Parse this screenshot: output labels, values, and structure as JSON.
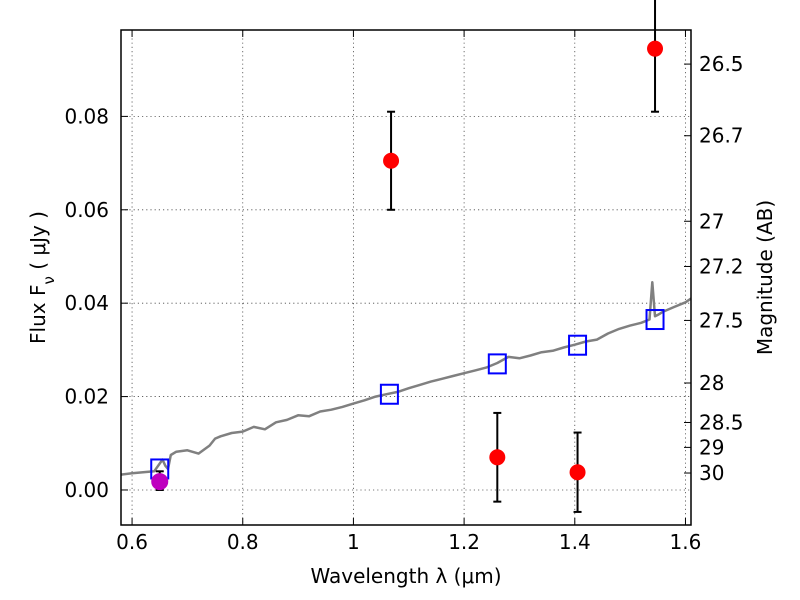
{
  "chart_data": {
    "type": "scatter",
    "xlabel": "Wavelength  λ (μm)",
    "ylabel": "Flux  F_ν  ( μJy )",
    "ylabel_right": "Magnitude (AB)",
    "xlim": [
      0.58,
      1.61
    ],
    "ylim": [
      -0.0075,
      0.0985
    ],
    "x_ticks": [
      0.6,
      0.8,
      1.0,
      1.2,
      1.4,
      1.6
    ],
    "x_tick_labels": [
      "0.6",
      "0.8",
      "1",
      "1.2",
      "1.4",
      "1.6"
    ],
    "y_ticks": [
      0.0,
      0.02,
      0.04,
      0.06,
      0.08
    ],
    "y_tick_labels": [
      "0.00",
      "0.02",
      "0.04",
      "0.06",
      "0.08"
    ],
    "mag_ticks": [
      26.5,
      26.7,
      27,
      27.2,
      27.5,
      28,
      28.5,
      29,
      30
    ],
    "mag_tick_labels": [
      "26.5",
      "26.7",
      "27",
      "27.2",
      "27.5",
      "28",
      "28.5",
      "29",
      "30"
    ],
    "grid": true,
    "colors": {
      "observed": "#ff0000",
      "reference_point": "#bf00bf",
      "model_band": "#0000ff",
      "model_spectrum": "#808080"
    },
    "series": [
      {
        "kind": "model_spectrum",
        "x": [
          0.58,
          0.6,
          0.62,
          0.64,
          0.655,
          0.66,
          0.665,
          0.67,
          0.68,
          0.7,
          0.72,
          0.74,
          0.75,
          0.76,
          0.78,
          0.8,
          0.82,
          0.84,
          0.86,
          0.88,
          0.9,
          0.92,
          0.94,
          0.96,
          0.98,
          1.0,
          1.02,
          1.04,
          1.06,
          1.08,
          1.1,
          1.12,
          1.14,
          1.16,
          1.18,
          1.2,
          1.22,
          1.24,
          1.26,
          1.28,
          1.3,
          1.32,
          1.34,
          1.36,
          1.38,
          1.4,
          1.42,
          1.44,
          1.46,
          1.48,
          1.5,
          1.52,
          1.535,
          1.54,
          1.545,
          1.55,
          1.56,
          1.58,
          1.6,
          1.61
        ],
        "y": [
          0.0033,
          0.0036,
          0.0038,
          0.004,
          0.0065,
          0.0052,
          0.0045,
          0.0075,
          0.0082,
          0.0085,
          0.0078,
          0.0095,
          0.011,
          0.0115,
          0.0122,
          0.0125,
          0.0135,
          0.013,
          0.0145,
          0.015,
          0.016,
          0.0158,
          0.0168,
          0.0172,
          0.0178,
          0.0185,
          0.0192,
          0.02,
          0.0205,
          0.021,
          0.0218,
          0.0225,
          0.0232,
          0.0238,
          0.0244,
          0.025,
          0.0256,
          0.0262,
          0.0272,
          0.0285,
          0.0282,
          0.0288,
          0.0295,
          0.0298,
          0.0305,
          0.0311,
          0.0318,
          0.0322,
          0.0335,
          0.0345,
          0.0352,
          0.0358,
          0.0365,
          0.0445,
          0.0372,
          0.0375,
          0.0382,
          0.0392,
          0.0402,
          0.041
        ]
      },
      {
        "kind": "model_band",
        "x": [
          0.65,
          1.065,
          1.26,
          1.405,
          1.545
        ],
        "y": [
          0.0045,
          0.0205,
          0.027,
          0.031,
          0.0365
        ]
      },
      {
        "kind": "observed",
        "x": [
          1.068,
          1.26,
          1.405,
          1.545
        ],
        "y": [
          0.0705,
          0.007,
          0.0038,
          0.0945
        ],
        "err_low": [
          0.0105,
          0.0095,
          0.0085,
          0.0135
        ],
        "err_high": [
          0.0105,
          0.0095,
          0.0085,
          0.0135
        ]
      },
      {
        "kind": "reference_point",
        "x": [
          0.65
        ],
        "y": [
          0.0018
        ],
        "err_low": [
          0.0018
        ],
        "err_high": [
          0.0022
        ]
      }
    ]
  }
}
